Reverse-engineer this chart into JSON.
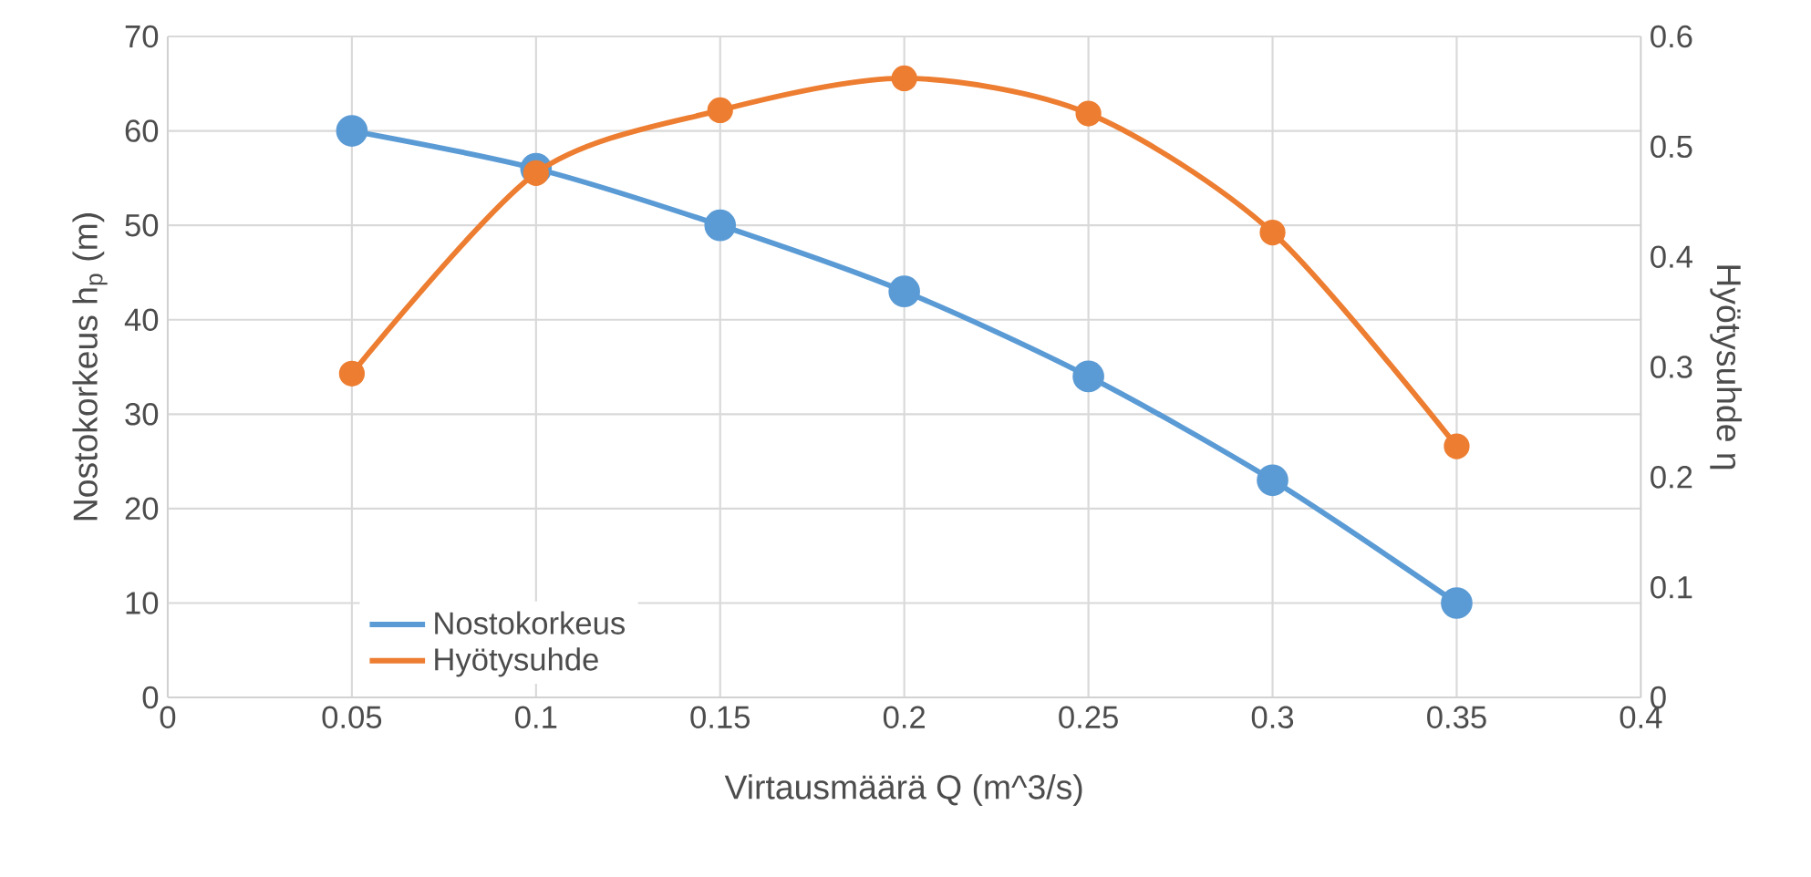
{
  "chart_data": {
    "type": "line",
    "xlabel": "Virtausmäärä Q (m^3/s)",
    "ylabel": "Nostokorkeus h$_{p}$ (m)",
    "y2label": "Hyötysuhde η",
    "x": [
      0.05,
      0.1,
      0.15,
      0.2,
      0.25,
      0.3,
      0.35
    ],
    "series": [
      {
        "name": "Nostokorkeus",
        "color": "#5b9bd5",
        "values": [
          60,
          56,
          50,
          43,
          34,
          23,
          10
        ]
      },
      {
        "name": "Hyötysuhde",
        "color": "#ed7d31",
        "axis": "y2",
        "values": [
          0.294,
          0.476,
          0.533,
          0.562,
          0.53,
          0.422,
          0.228
        ]
      }
    ],
    "xlim": [
      0,
      0.4
    ],
    "xticks": [
      0,
      0.05,
      0.1,
      0.15,
      0.2,
      0.25,
      0.3,
      0.35,
      0.4
    ],
    "ylim": [
      0,
      70
    ],
    "yticks": [
      0,
      10,
      20,
      30,
      40,
      50,
      60,
      70
    ],
    "y2lim": [
      0,
      0.6
    ],
    "y2ticks": [
      0,
      0.1,
      0.2,
      0.3,
      0.4,
      0.5,
      0.6
    ],
    "grid": true,
    "legend": "bottom left",
    "marker": "circle",
    "line_style": "solid"
  }
}
